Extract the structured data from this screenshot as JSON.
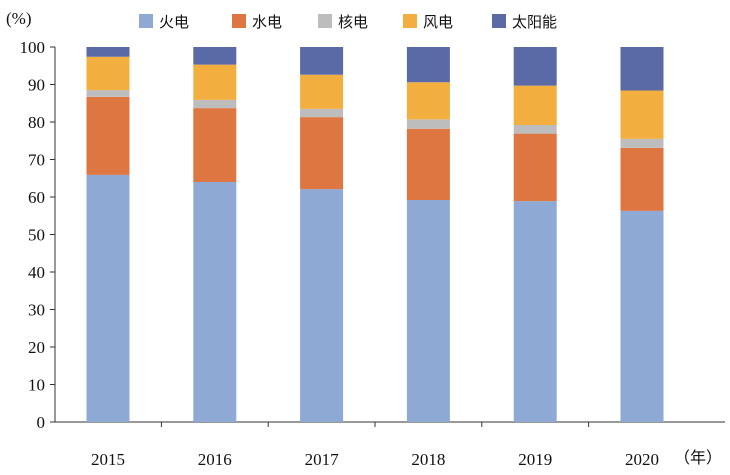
{
  "chart_data": {
    "type": "bar",
    "stacked": true,
    "title": "",
    "ylabel": "(%)",
    "xlabel": "（年）",
    "ylim": [
      0,
      100
    ],
    "yticks": [
      0,
      10,
      20,
      30,
      40,
      50,
      60,
      70,
      80,
      90,
      100
    ],
    "grid": false,
    "legend_position": "top",
    "categories": [
      "2015",
      "2016",
      "2017",
      "2018",
      "2019",
      "2020"
    ],
    "series": [
      {
        "name": "火电",
        "color": "#8eaad4",
        "values": [
          65.9,
          64.0,
          62.1,
          59.2,
          58.9,
          56.3
        ]
      },
      {
        "name": "水电",
        "color": "#de7641",
        "values": [
          20.8,
          19.7,
          19.2,
          19.0,
          18.0,
          16.8
        ]
      },
      {
        "name": "核电",
        "color": "#bdbdbd",
        "values": [
          1.8,
          2.2,
          2.2,
          2.5,
          2.3,
          2.4
        ]
      },
      {
        "name": "风电",
        "color": "#f2ae3e",
        "values": [
          8.9,
          9.4,
          9.1,
          9.9,
          10.5,
          12.9
        ]
      },
      {
        "name": "太阳能",
        "color": "#5a6aa6",
        "values": [
          2.6,
          4.7,
          7.4,
          9.4,
          10.3,
          11.6
        ]
      }
    ]
  }
}
